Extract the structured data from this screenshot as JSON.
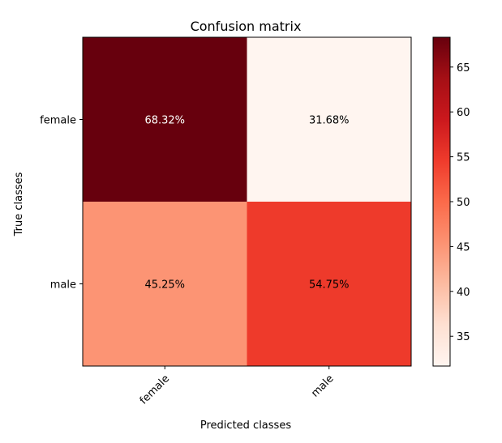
{
  "chart_data": {
    "type": "heatmap",
    "title": "Confusion matrix",
    "xlabel": "Predicted classes",
    "ylabel": "True classes",
    "x_categories": [
      "female",
      "male"
    ],
    "y_categories": [
      "female",
      "male"
    ],
    "values": [
      [
        68.32,
        31.68
      ],
      [
        45.25,
        54.75
      ]
    ],
    "cell_labels": [
      [
        "68.32%",
        "31.68%"
      ],
      [
        "45.25%",
        "54.75%"
      ]
    ],
    "colormap": "Reds",
    "colorbar": {
      "range": [
        31.68,
        68.32
      ],
      "ticks": [
        35,
        40,
        45,
        50,
        55,
        60,
        65
      ],
      "tick_labels": [
        "35",
        "40",
        "45",
        "50",
        "55",
        "60",
        "65"
      ]
    }
  }
}
